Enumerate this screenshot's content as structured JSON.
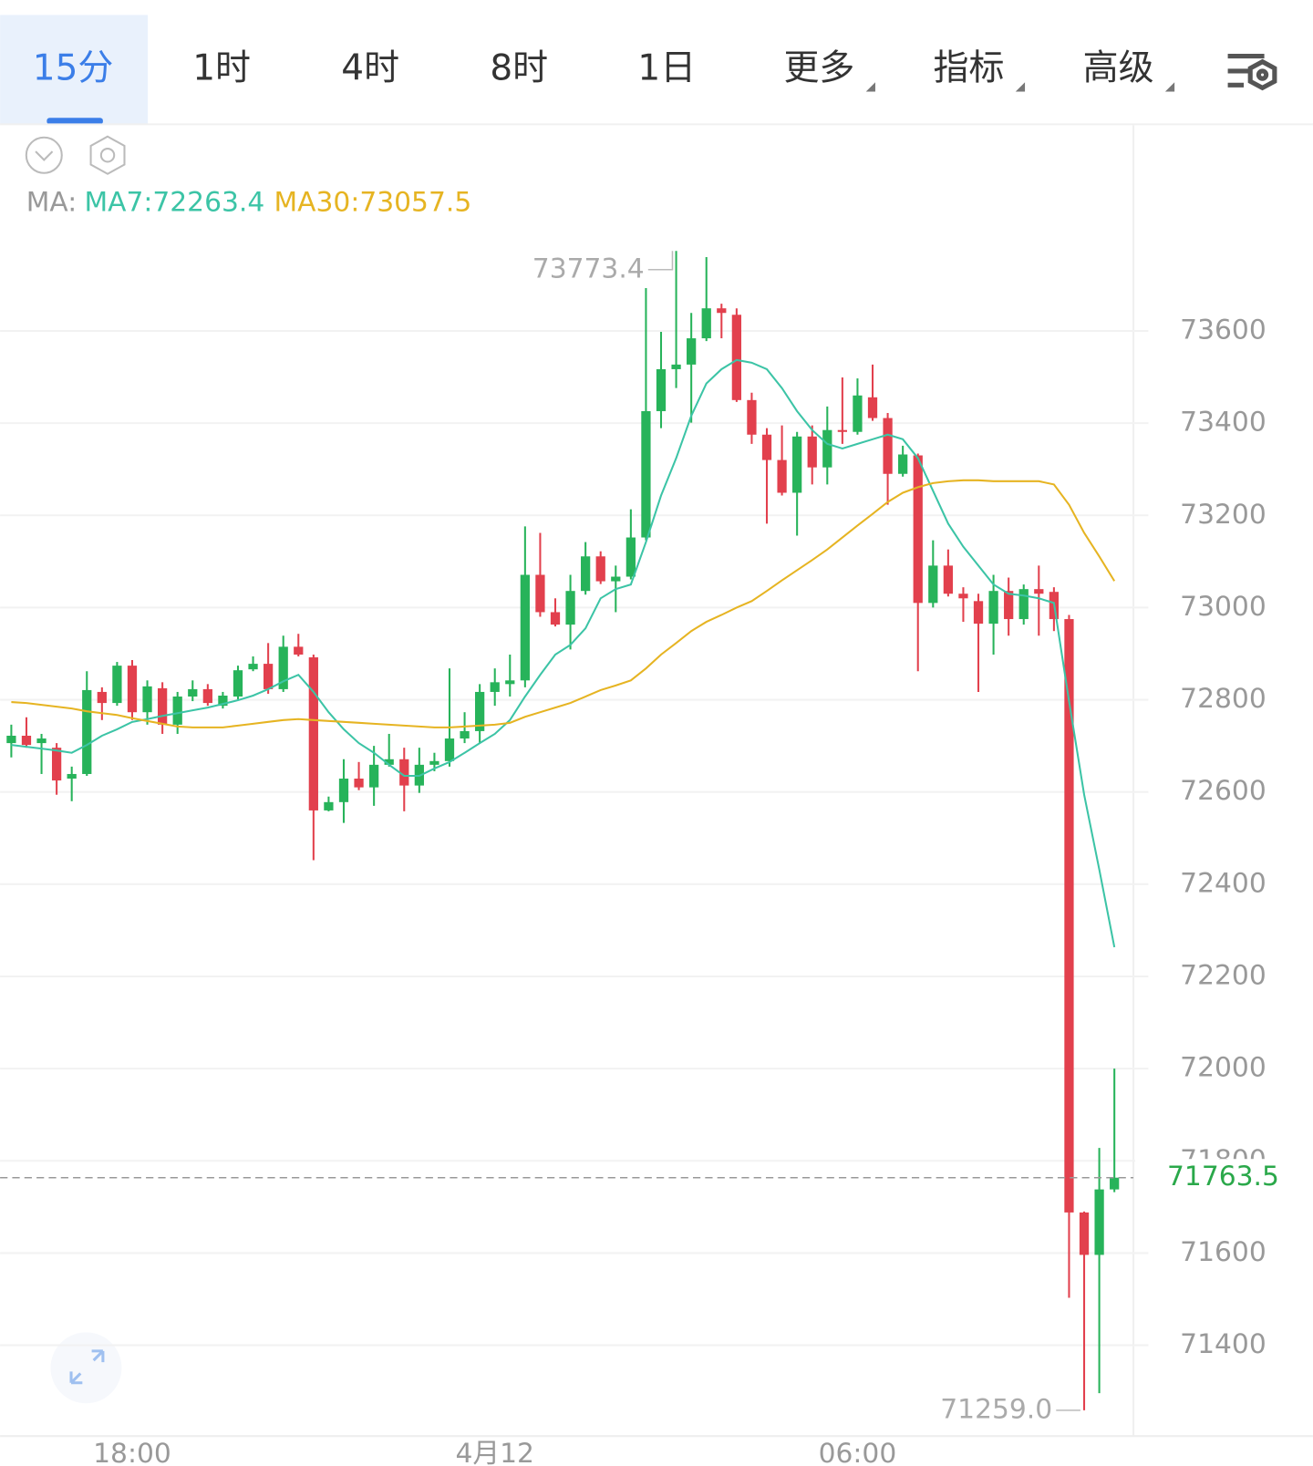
{
  "tabs": [
    "15分",
    "1时",
    "4时",
    "8时",
    "1日",
    "更多",
    "指标",
    "高级"
  ],
  "ma_prefix": "MA:",
  "chart_data": {
    "type": "candlestick",
    "categories": [
      null,
      null,
      null,
      null,
      null,
      null,
      null,
      null,
      "18:00",
      null,
      null,
      null,
      null,
      null,
      null,
      null,
      null,
      null,
      null,
      null,
      null,
      null,
      null,
      null,
      null,
      null,
      null,
      null,
      null,
      null,
      null,
      null,
      "4月12",
      null,
      null,
      null,
      null,
      null,
      null,
      null,
      null,
      null,
      null,
      null,
      null,
      null,
      null,
      null,
      null,
      null,
      null,
      null,
      null,
      null,
      null,
      null,
      "06:00",
      null,
      null,
      null,
      null,
      null,
      null,
      null,
      null,
      null,
      null,
      null,
      null,
      null,
      null,
      null,
      null,
      null
    ],
    "open": [
      72706,
      72722,
      72706,
      72696,
      72629,
      72639,
      72817,
      72793,
      72874,
      72773,
      72825,
      72746,
      72807,
      72823,
      72787,
      72807,
      72866,
      72878,
      72823,
      72915,
      72892,
      72560,
      72578,
      72629,
      72610,
      72659,
      72671,
      72614,
      72659,
      72667,
      72716,
      72732,
      72817,
      72834,
      72842,
      73071,
      72990,
      72963,
      73036,
      73111,
      73057,
      73067,
      73152,
      73426,
      73517,
      73527,
      73584,
      73649,
      73635,
      73450,
      73375,
      73320,
      73249,
      73371,
      73304,
      73385,
      73381,
      73456,
      73411,
      73290,
      73330,
      73010,
      73091,
      73030,
      73014,
      72965,
      73036,
      72975,
      73040,
      73034,
      72975,
      71688,
      71596,
      71738
    ],
    "high": [
      72746,
      72762,
      72726,
      72706,
      72655,
      72862,
      72827,
      72882,
      72886,
      72842,
      72838,
      72817,
      72842,
      72834,
      72817,
      72874,
      72894,
      72923,
      72939,
      72943,
      72898,
      72590,
      72671,
      72665,
      72700,
      72726,
      72696,
      72696,
      72685,
      72868,
      72773,
      72834,
      72868,
      72898,
      73176,
      73162,
      73020,
      73071,
      73142,
      73122,
      73091,
      73213,
      73693,
      73598,
      73773.4,
      73639,
      73760,
      73659,
      73649,
      73466,
      73389,
      73395,
      73381,
      73395,
      73436,
      73499,
      73497,
      73527,
      73422,
      73351,
      73334,
      73146,
      73126,
      73044,
      73030,
      73071,
      73065,
      73050,
      73091,
      73044,
      72984,
      71690,
      71828,
      72000
    ],
    "low": [
      72675,
      72696,
      72639,
      72594,
      72580,
      72635,
      72756,
      72787,
      72756,
      72746,
      72726,
      72726,
      72797,
      72787,
      72781,
      72801,
      72862,
      72813,
      72817,
      72894,
      72452,
      72558,
      72533,
      72604,
      72570,
      72655,
      72558,
      72598,
      72645,
      72655,
      72706,
      72706,
      72787,
      72807,
      72827,
      72980,
      72959,
      72909,
      73028,
      73051,
      72990,
      73061,
      73146,
      73389,
      73476,
      73401,
      73578,
      73584,
      73446,
      73355,
      73182,
      73243,
      73156,
      73267,
      73267,
      73355,
      73375,
      73405,
      73223,
      73284,
      72862,
      73000,
      73024,
      72969,
      72817,
      72898,
      72939,
      72963,
      72939,
      72949,
      71503,
      71259,
      71296,
      71732
    ],
    "close": [
      72722,
      72702,
      72716,
      72625,
      72639,
      72821,
      72793,
      72874,
      72773,
      72829,
      72746,
      72807,
      72823,
      72793,
      72809,
      72864,
      72878,
      72823,
      72915,
      72898,
      72560,
      72578,
      72629,
      72610,
      72659,
      72671,
      72614,
      72659,
      72667,
      72716,
      72732,
      72817,
      72838,
      72842,
      73071,
      72990,
      72963,
      73036,
      73111,
      73057,
      73067,
      73152,
      73426,
      73517,
      73527,
      73584,
      73649,
      73639,
      73450,
      73375,
      73320,
      73249,
      73371,
      73304,
      73385,
      73381,
      73460,
      73411,
      73290,
      73332,
      73010,
      73091,
      73030,
      73020,
      72965,
      73036,
      72975,
      73040,
      73030,
      72975,
      71688,
      71596,
      71738,
      71763.5
    ],
    "up_color": "#27b35a",
    "down_color": "#e2404d",
    "series": [
      {
        "name": "MA7:72263.4",
        "color": "#3cc4a6",
        "values": [
          72702,
          72698,
          72694,
          72690,
          72685,
          72702,
          72722,
          72736,
          72752,
          72758,
          72765,
          72771,
          72777,
          72783,
          72791,
          72799,
          72809,
          72823,
          72840,
          72854,
          72817,
          72773,
          72736,
          72706,
          72685,
          72659,
          72635,
          72635,
          72651,
          72665,
          72685,
          72706,
          72726,
          72756,
          72807,
          72854,
          72898,
          72919,
          72955,
          73020,
          73040,
          73050,
          73142,
          73243,
          73324,
          73416,
          73486,
          73517,
          73537,
          73531,
          73517,
          73476,
          73426,
          73385,
          73355,
          73345,
          73355,
          73365,
          73375,
          73365,
          73324,
          73253,
          73182,
          73132,
          73091,
          73050,
          73030,
          73026,
          73020,
          73010,
          72797,
          72594,
          72432,
          72263.4
        ]
      },
      {
        "name": "MA30:73057.5",
        "color": "#e6b422",
        "values": [
          72795,
          72793,
          72789,
          72785,
          72781,
          72775,
          72771,
          72767,
          72760,
          72754,
          72748,
          72742,
          72740,
          72740,
          72740,
          72744,
          72748,
          72752,
          72756,
          72758,
          72756,
          72754,
          72752,
          72750,
          72748,
          72746,
          72744,
          72742,
          72740,
          72740,
          72742,
          72744,
          72746,
          72750,
          72763,
          72773,
          72783,
          72793,
          72807,
          72821,
          72831,
          72842,
          72868,
          72898,
          72923,
          72949,
          72969,
          72984,
          73000,
          73014,
          73036,
          73059,
          73081,
          73103,
          73126,
          73152,
          73178,
          73203,
          73229,
          73249,
          73261,
          73270,
          73274,
          73276,
          73276,
          73274,
          73274,
          73274,
          73274,
          73267,
          73223,
          73162,
          73111,
          73057.5
        ]
      }
    ],
    "ylim": [
      71203,
      74046
    ],
    "yticks": [
      71400,
      71600,
      71800,
      72000,
      72200,
      72400,
      72600,
      72800,
      73000,
      73200,
      73400,
      73600
    ],
    "grid": true,
    "annotations": [
      {
        "value": 73773.4,
        "label": "73773.4",
        "index": 44
      },
      {
        "value": 71259,
        "label": "71259.0",
        "index": 71
      }
    ],
    "last_price": {
      "value": 71763.5,
      "label": "71763.5",
      "color": "#2aa84a"
    }
  }
}
